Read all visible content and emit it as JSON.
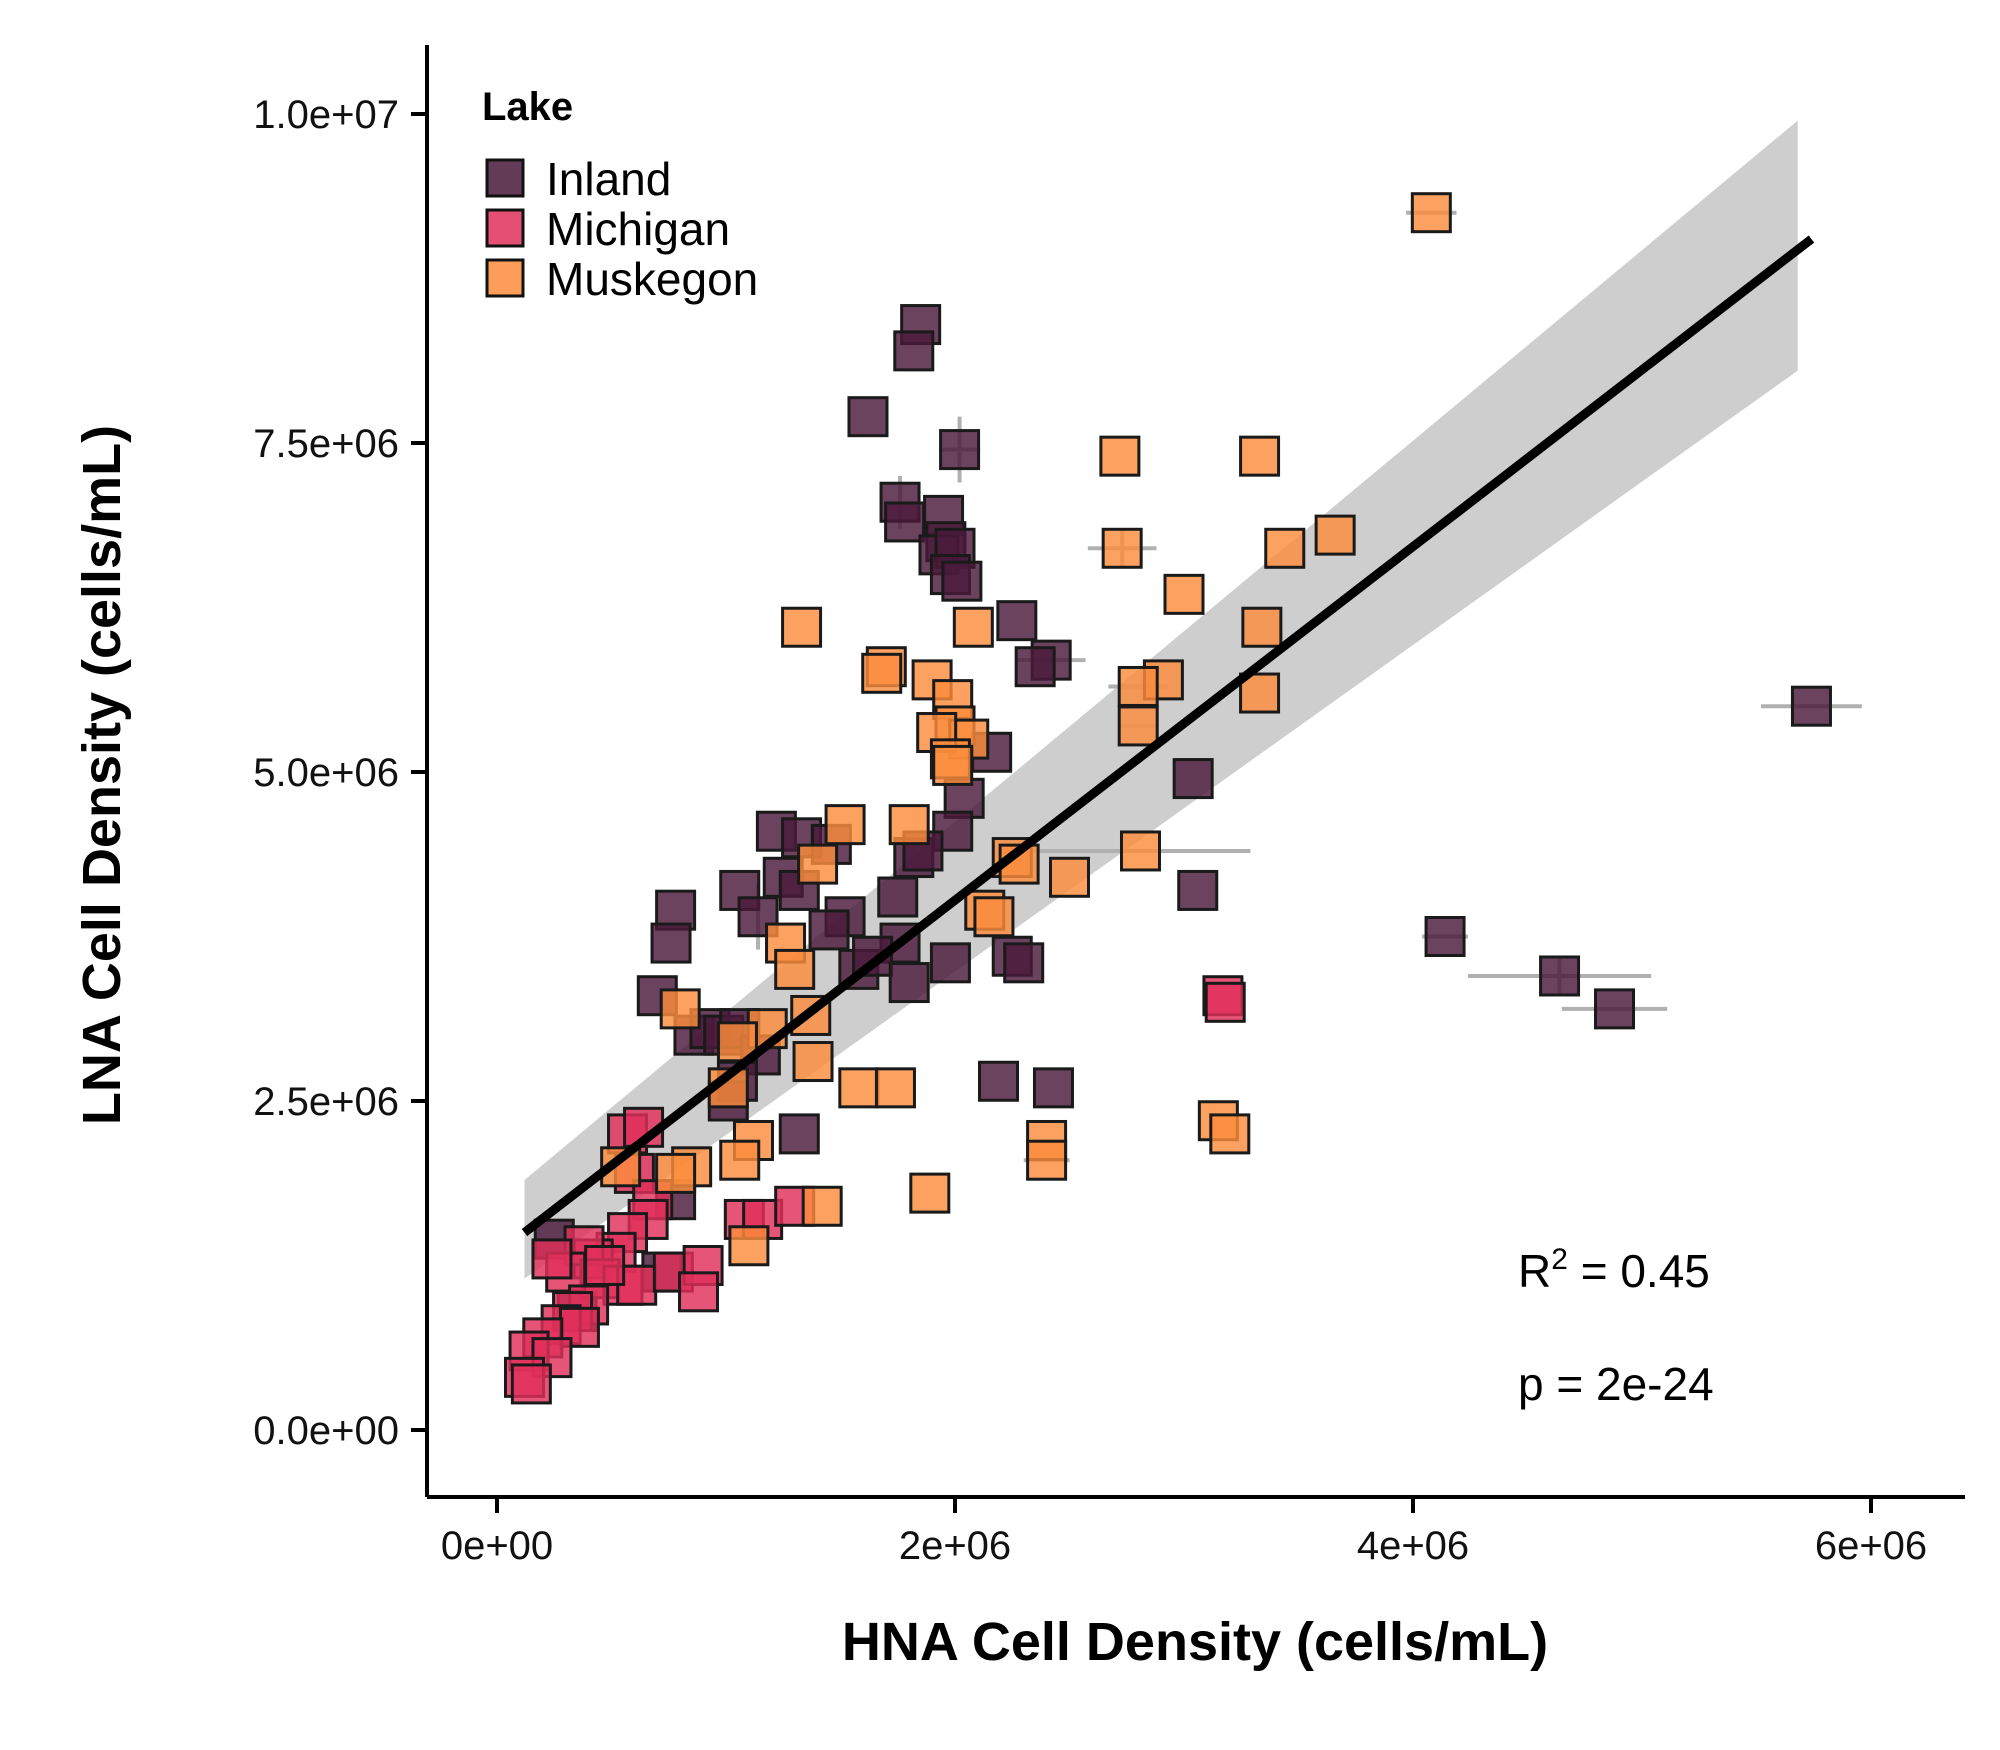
{
  "chart_data": {
    "type": "scatter",
    "title": "",
    "xlabel": "HNA Cell Density (cells/mL)",
    "ylabel": "LNA Cell Density (cells/mL)",
    "xlim": [
      -300000,
      6400000
    ],
    "ylim": [
      -500000,
      10500000
    ],
    "x_ticks": [
      0,
      2000000,
      4000000,
      6000000
    ],
    "x_tick_labels": [
      "0e+00",
      "2e+06",
      "4e+06",
      "6e+06"
    ],
    "y_ticks": [
      0,
      2500000,
      5000000,
      7500000,
      10000000
    ],
    "y_tick_labels": [
      "0.0e+00",
      "2.5e+06",
      "5.0e+06",
      "7.5e+06",
      "1.0e+07"
    ],
    "grid": false,
    "legend": {
      "title": "Lake",
      "position": "top-left",
      "entries": [
        "Inland",
        "Michigan",
        "Muskegon"
      ]
    },
    "series": [
      {
        "name": "Inland",
        "color": "#4a1a3b",
        "points": [
          [
            1850000,
            8400000
          ],
          [
            1820000,
            8200000
          ],
          [
            1620000,
            7700000
          ],
          [
            2020000,
            7450000
          ],
          [
            1760000,
            7050000
          ],
          [
            1780000,
            6900000
          ],
          [
            1950000,
            6950000
          ],
          [
            1960000,
            6750000
          ],
          [
            1930000,
            6650000
          ],
          [
            2000000,
            6700000
          ],
          [
            1980000,
            6500000
          ],
          [
            2030000,
            6450000
          ],
          [
            2270000,
            6150000
          ],
          [
            2420000,
            5850000
          ],
          [
            2350000,
            5800000
          ],
          [
            3040000,
            4950000
          ],
          [
            2160000,
            5150000
          ],
          [
            2040000,
            4800000
          ],
          [
            1990000,
            4550000
          ],
          [
            1820000,
            4350000
          ],
          [
            1860000,
            4400000
          ],
          [
            3060000,
            4100000
          ],
          [
            1220000,
            4550000
          ],
          [
            1330000,
            4500000
          ],
          [
            1460000,
            4450000
          ],
          [
            1250000,
            4200000
          ],
          [
            1320000,
            4100000
          ],
          [
            1060000,
            4100000
          ],
          [
            1140000,
            3900000
          ],
          [
            780000,
            3950000
          ],
          [
            760000,
            3700000
          ],
          [
            1520000,
            3900000
          ],
          [
            1450000,
            3800000
          ],
          [
            1750000,
            4050000
          ],
          [
            2250000,
            3600000
          ],
          [
            2300000,
            3550000
          ],
          [
            1760000,
            3700000
          ],
          [
            1580000,
            3500000
          ],
          [
            1640000,
            3600000
          ],
          [
            1800000,
            3400000
          ],
          [
            1980000,
            3550000
          ],
          [
            700000,
            3300000
          ],
          [
            860000,
            3000000
          ],
          [
            930000,
            3050000
          ],
          [
            990000,
            3000000
          ],
          [
            1060000,
            3050000
          ],
          [
            1150000,
            2850000
          ],
          [
            1050000,
            2650000
          ],
          [
            1010000,
            2500000
          ],
          [
            1320000,
            2250000
          ],
          [
            2190000,
            2650000
          ],
          [
            2430000,
            2600000
          ],
          [
            4140000,
            3750000
          ],
          [
            4640000,
            3450000
          ],
          [
            4880000,
            3200000
          ],
          [
            5740000,
            5500000
          ],
          [
            780000,
            1750000
          ],
          [
            720000,
            1200000
          ],
          [
            250000,
            1450000
          ],
          [
            350000,
            900000
          ]
        ]
      },
      {
        "name": "Michigan",
        "color": "#e0305a",
        "points": [
          [
            3170000,
            3300000
          ],
          [
            3180000,
            3250000
          ],
          [
            570000,
            2250000
          ],
          [
            640000,
            2300000
          ],
          [
            600000,
            1950000
          ],
          [
            680000,
            1750000
          ],
          [
            660000,
            1600000
          ],
          [
            570000,
            1500000
          ],
          [
            520000,
            1350000
          ],
          [
            420000,
            1300000
          ],
          [
            380000,
            1400000
          ],
          [
            450000,
            1150000
          ],
          [
            300000,
            1200000
          ],
          [
            240000,
            1300000
          ],
          [
            550000,
            1100000
          ],
          [
            610000,
            1100000
          ],
          [
            770000,
            1200000
          ],
          [
            900000,
            1250000
          ],
          [
            880000,
            1050000
          ],
          [
            1080000,
            1600000
          ],
          [
            1160000,
            1600000
          ],
          [
            1300000,
            1700000
          ],
          [
            400000,
            950000
          ],
          [
            330000,
            900000
          ],
          [
            280000,
            800000
          ],
          [
            360000,
            780000
          ],
          [
            200000,
            700000
          ],
          [
            140000,
            600000
          ],
          [
            240000,
            550000
          ],
          [
            120000,
            400000
          ],
          [
            150000,
            350000
          ],
          [
            470000,
            1250000
          ]
        ]
      },
      {
        "name": "Muskegon",
        "color": "#fb8c3c",
        "points": [
          [
            4080000,
            9250000
          ],
          [
            2720000,
            7400000
          ],
          [
            3330000,
            7400000
          ],
          [
            2730000,
            6700000
          ],
          [
            3440000,
            6700000
          ],
          [
            3660000,
            6800000
          ],
          [
            3000000,
            6350000
          ],
          [
            3340000,
            6100000
          ],
          [
            1330000,
            6100000
          ],
          [
            2080000,
            6100000
          ],
          [
            1700000,
            5800000
          ],
          [
            1680000,
            5750000
          ],
          [
            1900000,
            5700000
          ],
          [
            2910000,
            5700000
          ],
          [
            2800000,
            5650000
          ],
          [
            3330000,
            5600000
          ],
          [
            1990000,
            5550000
          ],
          [
            2000000,
            5350000
          ],
          [
            2060000,
            5250000
          ],
          [
            1920000,
            5300000
          ],
          [
            1980000,
            5100000
          ],
          [
            1990000,
            5050000
          ],
          [
            2800000,
            5350000
          ],
          [
            1520000,
            4600000
          ],
          [
            1400000,
            4300000
          ],
          [
            1800000,
            4600000
          ],
          [
            2250000,
            4350000
          ],
          [
            2280000,
            4300000
          ],
          [
            2500000,
            4200000
          ],
          [
            2810000,
            4400000
          ],
          [
            2130000,
            3950000
          ],
          [
            2170000,
            3900000
          ],
          [
            1260000,
            3700000
          ],
          [
            1300000,
            3500000
          ],
          [
            1370000,
            3150000
          ],
          [
            1180000,
            3050000
          ],
          [
            800000,
            3200000
          ],
          [
            1050000,
            2950000
          ],
          [
            1380000,
            2800000
          ],
          [
            1580000,
            2600000
          ],
          [
            1740000,
            2600000
          ],
          [
            1120000,
            2200000
          ],
          [
            1060000,
            2050000
          ],
          [
            850000,
            2000000
          ],
          [
            780000,
            1950000
          ],
          [
            1890000,
            1800000
          ],
          [
            1420000,
            1700000
          ],
          [
            1100000,
            1400000
          ],
          [
            3150000,
            2350000
          ],
          [
            3200000,
            2250000
          ],
          [
            2400000,
            2200000
          ],
          [
            2400000,
            2050000
          ],
          [
            540000,
            2000000
          ],
          [
            1010000,
            2600000
          ]
        ]
      }
    ],
    "error_bars": [
      {
        "x": 4080000,
        "y": 9250000,
        "xerr": 110000,
        "yerr": 0
      },
      {
        "x": 2020000,
        "y": 7450000,
        "xerr": 90000,
        "yerr": 250000
      },
      {
        "x": 1760000,
        "y": 7050000,
        "xerr": 0,
        "yerr": 200000
      },
      {
        "x": 2730000,
        "y": 6700000,
        "xerr": 150000,
        "yerr": 150000
      },
      {
        "x": 2420000,
        "y": 5850000,
        "xerr": 150000,
        "yerr": 0
      },
      {
        "x": 2800000,
        "y": 5650000,
        "xerr": 130000,
        "yerr": 0
      },
      {
        "x": 2800000,
        "y": 5350000,
        "xerr": 80000,
        "yerr": 0
      },
      {
        "x": 2810000,
        "y": 4400000,
        "xerr": 480000,
        "yerr": 0
      },
      {
        "x": 5740000,
        "y": 5500000,
        "xerr": 220000,
        "yerr": 0
      },
      {
        "x": 4140000,
        "y": 3750000,
        "xerr": 100000,
        "yerr": 0
      },
      {
        "x": 4640000,
        "y": 3450000,
        "xerr": 400000,
        "yerr": 150000
      },
      {
        "x": 4880000,
        "y": 3200000,
        "xerr": 230000,
        "yerr": 0
      },
      {
        "x": 2400000,
        "y": 2050000,
        "xerr": 100000,
        "yerr": 0
      },
      {
        "x": 1140000,
        "y": 3900000,
        "xerr": 0,
        "yerr": 250000
      }
    ],
    "regression": {
      "x": [
        120000,
        5740000
      ],
      "y": [
        1500000,
        9050000
      ],
      "ci_lower_start": 1150000,
      "ci_upper_start": 1900000,
      "ci_lower_end": 8050000,
      "ci_upper_end": 9950000,
      "ci_x_end": 5680000
    },
    "annotations": {
      "r2_base": "R",
      "r2_sup": "2",
      "r2_value": " = 0.45",
      "p_text": "p = 2e-24"
    }
  }
}
